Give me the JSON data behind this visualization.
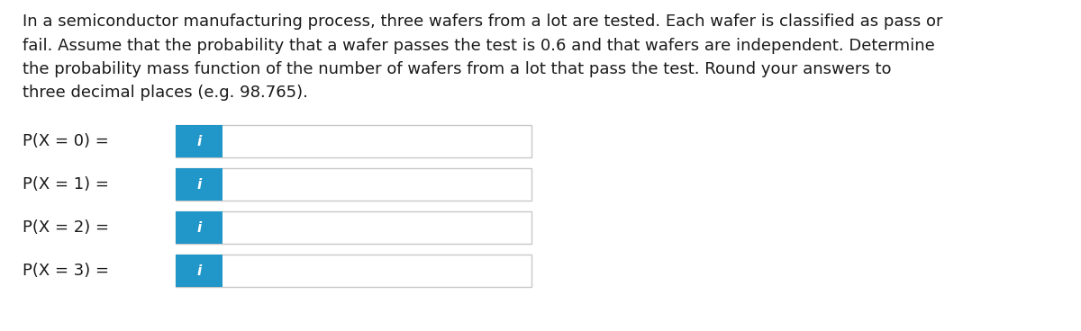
{
  "background_color": "#ffffff",
  "text_color": "#1a1a1a",
  "lines": [
    "In a semiconductor manufacturing process, three wafers from a lot are tested. Each wafer is classified as pass or",
    "fail. Assume that the probability that a wafer passes the test is 0.6 and that wafers are independent. Determine",
    "the probability mass function of the number of wafers from a lot that pass the test. Round your answers to",
    "three decimal places (e.g. 98.765)."
  ],
  "rows": [
    {
      "label": "P(X = 0) =",
      "icon_text": "i"
    },
    {
      "label": "P(X = 1) =",
      "icon_text": "i"
    },
    {
      "label": "P(X = 2) =",
      "icon_text": "i"
    },
    {
      "label": "P(X = 3) =",
      "icon_text": "i"
    }
  ],
  "icon_bg_color": "#2196c8",
  "icon_text_color": "#ffffff",
  "box_border_color": "#c8c8c8",
  "box_fill_color": "#ffffff",
  "label_fontsize": 13,
  "para_fontsize": 13,
  "icon_fontsize": 11,
  "fig_width": 12.0,
  "fig_height": 3.68,
  "dpi": 100
}
